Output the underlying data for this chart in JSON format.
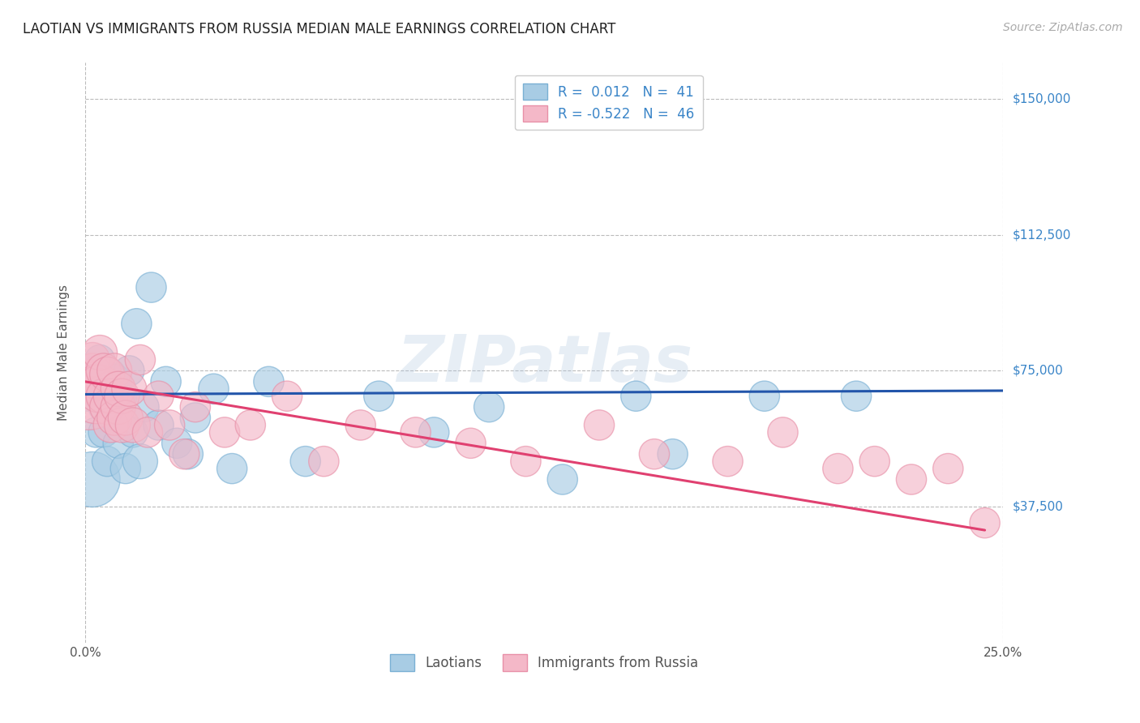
{
  "title": "LAOTIAN VS IMMIGRANTS FROM RUSSIA MEDIAN MALE EARNINGS CORRELATION CHART",
  "source": "Source: ZipAtlas.com",
  "ylabel": "Median Male Earnings",
  "xlim": [
    0.0,
    0.25
  ],
  "ylim": [
    0,
    160000
  ],
  "yticks": [
    0,
    37500,
    75000,
    112500,
    150000
  ],
  "ytick_labels": [
    "",
    "$37,500",
    "$75,000",
    "$112,500",
    "$150,000"
  ],
  "xticks": [
    0.0,
    0.05,
    0.1,
    0.15,
    0.2,
    0.25
  ],
  "xtick_labels": [
    "0.0%",
    "",
    "",
    "",
    "",
    "25.0%"
  ],
  "blue_fill": "#a8cce4",
  "blue_edge": "#7ab0d4",
  "pink_fill": "#f4b8c8",
  "pink_edge": "#e890a8",
  "blue_line_color": "#2255aa",
  "pink_line_color": "#e04070",
  "legend1_label": "Laotians",
  "legend2_label": "Immigrants from Russia",
  "watermark": "ZIPatlas",
  "background_color": "#ffffff",
  "grid_color": "#bbbbbb",
  "title_color": "#222222",
  "axis_label_color": "#555555",
  "ytick_color": "#3a85c8",
  "blue_scatter_x": [
    0.001,
    0.002,
    0.002,
    0.003,
    0.003,
    0.004,
    0.004,
    0.005,
    0.005,
    0.006,
    0.006,
    0.007,
    0.007,
    0.008,
    0.008,
    0.009,
    0.01,
    0.011,
    0.012,
    0.013,
    0.014,
    0.015,
    0.016,
    0.018,
    0.02,
    0.022,
    0.025,
    0.028,
    0.03,
    0.035,
    0.04,
    0.05,
    0.06,
    0.08,
    0.095,
    0.11,
    0.13,
    0.15,
    0.16,
    0.185,
    0.21
  ],
  "blue_scatter_y": [
    68000,
    72000,
    45000,
    58000,
    75000,
    68000,
    78000,
    58000,
    65000,
    50000,
    70000,
    65000,
    74000,
    62000,
    72000,
    55000,
    68000,
    48000,
    75000,
    58000,
    88000,
    50000,
    65000,
    98000,
    60000,
    72000,
    55000,
    52000,
    62000,
    70000,
    48000,
    72000,
    50000,
    68000,
    58000,
    65000,
    45000,
    68000,
    52000,
    68000,
    68000
  ],
  "blue_scatter_sizes": [
    60,
    60,
    200,
    60,
    60,
    60,
    60,
    60,
    60,
    60,
    60,
    60,
    60,
    60,
    80,
    60,
    60,
    60,
    60,
    60,
    60,
    80,
    60,
    60,
    60,
    60,
    60,
    60,
    60,
    60,
    60,
    60,
    60,
    60,
    60,
    60,
    60,
    60,
    60,
    60,
    60
  ],
  "pink_scatter_x": [
    0.001,
    0.001,
    0.002,
    0.002,
    0.003,
    0.003,
    0.004,
    0.004,
    0.005,
    0.005,
    0.006,
    0.006,
    0.007,
    0.007,
    0.008,
    0.008,
    0.009,
    0.009,
    0.01,
    0.01,
    0.011,
    0.012,
    0.013,
    0.015,
    0.017,
    0.02,
    0.023,
    0.027,
    0.03,
    0.038,
    0.045,
    0.055,
    0.065,
    0.075,
    0.09,
    0.105,
    0.12,
    0.14,
    0.155,
    0.175,
    0.19,
    0.205,
    0.215,
    0.225,
    0.235,
    0.245
  ],
  "pink_scatter_y": [
    72000,
    68000,
    75000,
    78000,
    68000,
    72000,
    70000,
    80000,
    75000,
    68000,
    65000,
    74000,
    60000,
    68000,
    75000,
    62000,
    65000,
    70000,
    60000,
    68000,
    62000,
    70000,
    60000,
    78000,
    58000,
    68000,
    60000,
    52000,
    65000,
    58000,
    60000,
    68000,
    50000,
    60000,
    58000,
    55000,
    50000,
    60000,
    52000,
    50000,
    58000,
    48000,
    50000,
    45000,
    48000,
    33000
  ],
  "pink_scatter_sizes": [
    120,
    300,
    80,
    80,
    200,
    80,
    150,
    80,
    80,
    80,
    80,
    80,
    80,
    80,
    80,
    80,
    80,
    80,
    80,
    80,
    80,
    80,
    80,
    60,
    60,
    60,
    60,
    60,
    60,
    60,
    60,
    60,
    60,
    60,
    60,
    60,
    60,
    60,
    60,
    60,
    60,
    60,
    60,
    60,
    60,
    60
  ],
  "blue_line_x": [
    0.0,
    0.25
  ],
  "blue_line_y": [
    68500,
    69500
  ],
  "pink_line_x": [
    0.0,
    0.245
  ],
  "pink_line_y": [
    72000,
    31000
  ]
}
